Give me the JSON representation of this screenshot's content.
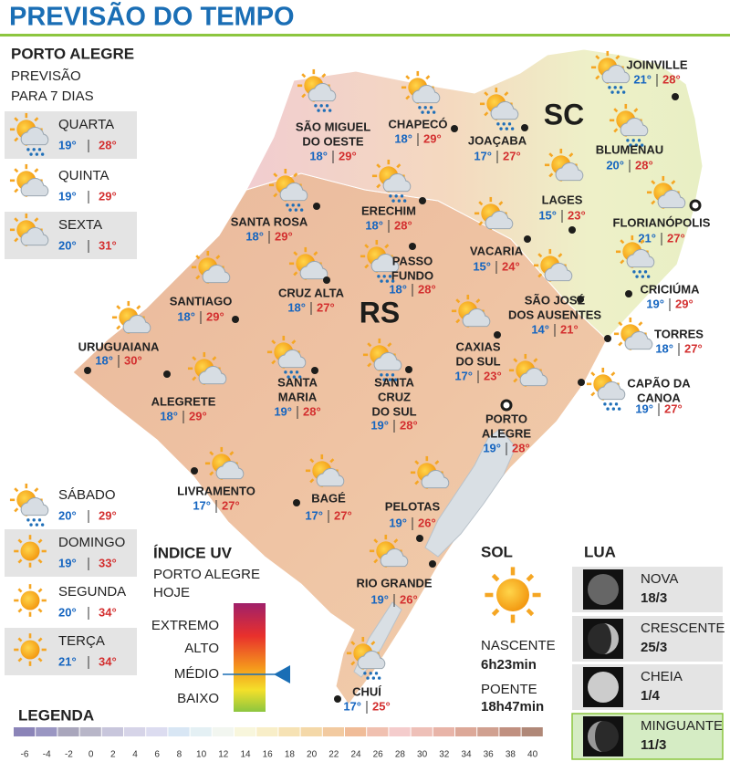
{
  "header": {
    "title": "PREVISÃO DO TEMPO"
  },
  "forecast": {
    "city": "PORTO ALEGRE",
    "subtitle": [
      "PREVISÃO",
      "PARA 7 DIAS"
    ],
    "days": [
      {
        "day": "QUARTA",
        "min": "19°",
        "max": "28°"
      },
      {
        "day": "QUINTA",
        "min": "19°",
        "max": "29°"
      },
      {
        "day": "SEXTA",
        "min": "20°",
        "max": "31°"
      },
      {
        "day": "SÁBADO",
        "min": "20°",
        "max": "29°"
      },
      {
        "day": "DOMINGO",
        "min": "19°",
        "max": "33°"
      },
      {
        "day": "SEGUNDA",
        "min": "20°",
        "max": "34°"
      },
      {
        "day": "TERÇA",
        "min": "21°",
        "max": "34°"
      }
    ]
  },
  "map": {
    "states": [
      "SC",
      "RS"
    ],
    "cities": [
      {
        "name": [
          "SÃO MIGUEL",
          "DO OESTE"
        ],
        "min": "18°",
        "max": "29°"
      },
      {
        "name": [
          "CHAPECÓ"
        ],
        "min": "18°",
        "max": "29°"
      },
      {
        "name": [
          "JOAÇABA"
        ],
        "min": "17°",
        "max": "27°"
      },
      {
        "name": [
          "JOINVILLE"
        ],
        "min": "21°",
        "max": "28°"
      },
      {
        "name": [
          "BLUMENAU"
        ],
        "min": "20°",
        "max": "28°"
      },
      {
        "name": [
          "LAGES"
        ],
        "min": "15°",
        "max": "23°"
      },
      {
        "name": [
          "FLORIANÓPOLIS"
        ],
        "min": "21°",
        "max": "27°"
      },
      {
        "name": [
          "SANTA ROSA"
        ],
        "min": "18°",
        "max": "29°"
      },
      {
        "name": [
          "ERECHIM"
        ],
        "min": "18°",
        "max": "28°"
      },
      {
        "name": [
          "PASSO",
          "FUNDO"
        ],
        "min": "18°",
        "max": "28°"
      },
      {
        "name": [
          "VACARIA"
        ],
        "min": "15°",
        "max": "24°"
      },
      {
        "name": [
          "SÃO JOSÉ",
          "DOS AUSENTES"
        ],
        "min": "14°",
        "max": "21°"
      },
      {
        "name": [
          "CRICIÚMA"
        ],
        "min": "19°",
        "max": "29°"
      },
      {
        "name": [
          "TORRES"
        ],
        "min": "18°",
        "max": "27°"
      },
      {
        "name": [
          "CAPÃO DA",
          "CANOA"
        ],
        "min": "19°",
        "max": "27°"
      },
      {
        "name": [
          "SANTIAGO"
        ],
        "min": "18°",
        "max": "29°"
      },
      {
        "name": [
          "CRUZ ALTA"
        ],
        "min": "18°",
        "max": "27°"
      },
      {
        "name": [
          "CAXIAS",
          "DO SUL"
        ],
        "min": "17°",
        "max": "23°"
      },
      {
        "name": [
          "URUGUAIANA"
        ],
        "min": "18°",
        "max": "30°"
      },
      {
        "name": [
          "ALEGRETE"
        ],
        "min": "18°",
        "max": "29°"
      },
      {
        "name": [
          "SANTA",
          "MARIA"
        ],
        "min": "19°",
        "max": "28°"
      },
      {
        "name": [
          "SANTA",
          "CRUZ",
          "DO SUL"
        ],
        "min": "19°",
        "max": "28°"
      },
      {
        "name": [
          "PORTO",
          "ALEGRE"
        ],
        "min": "19°",
        "max": "28°"
      },
      {
        "name": [
          "LIVRAMENTO"
        ],
        "min": "17°",
        "max": "27°"
      },
      {
        "name": [
          "BAGÉ"
        ],
        "min": "17°",
        "max": "27°"
      },
      {
        "name": [
          "PELOTAS"
        ],
        "min": "19°",
        "max": "26°"
      },
      {
        "name": [
          "RIO GRANDE"
        ],
        "min": "19°",
        "max": "26°"
      },
      {
        "name": [
          "CHUÍ"
        ],
        "min": "17°",
        "max": "25°"
      }
    ]
  },
  "uv": {
    "title": "ÍNDICE UV",
    "subtitle": [
      "PORTO ALEGRE",
      "HOJE"
    ],
    "levels": [
      "EXTREMO",
      "ALTO",
      "MÉDIO",
      "BAIXO"
    ]
  },
  "sun": {
    "title": "SOL",
    "sunrise_label": "NASCENTE",
    "sunrise": "6h23min",
    "sunset_label": "POENTE",
    "sunset": "18h47min"
  },
  "moon": {
    "title": "LUA",
    "phases": [
      {
        "name": "NOVA",
        "date": "18/3"
      },
      {
        "name": "CRESCENTE",
        "date": "25/3"
      },
      {
        "name": "CHEIA",
        "date": "1/4"
      },
      {
        "name": "MINGUANTE",
        "date": "11/3"
      }
    ]
  },
  "legend": {
    "title": "LEGENDA",
    "ticks": [
      -6,
      -4,
      -2,
      0,
      2,
      4,
      6,
      8,
      10,
      12,
      14,
      16,
      18,
      20,
      22,
      24,
      26,
      28,
      30,
      32,
      34,
      36,
      38,
      40
    ],
    "colors": [
      "#8b84b8",
      "#9a96c2",
      "#a9a6bc",
      "#b8b6c8",
      "#c8c6dc",
      "#d6d4e8",
      "#dcdcf0",
      "#d8e6f4",
      "#e4f0f4",
      "#f2f6f0",
      "#f8f6dc",
      "#f8eec8",
      "#f6e2b4",
      "#f4d8a8",
      "#f2caa0",
      "#f0bc98",
      "#f0c0b0",
      "#f4cccc",
      "#eec0b8",
      "#e8b4a8",
      "#dca898",
      "#d0a090",
      "#c09080",
      "#b08878"
    ]
  }
}
